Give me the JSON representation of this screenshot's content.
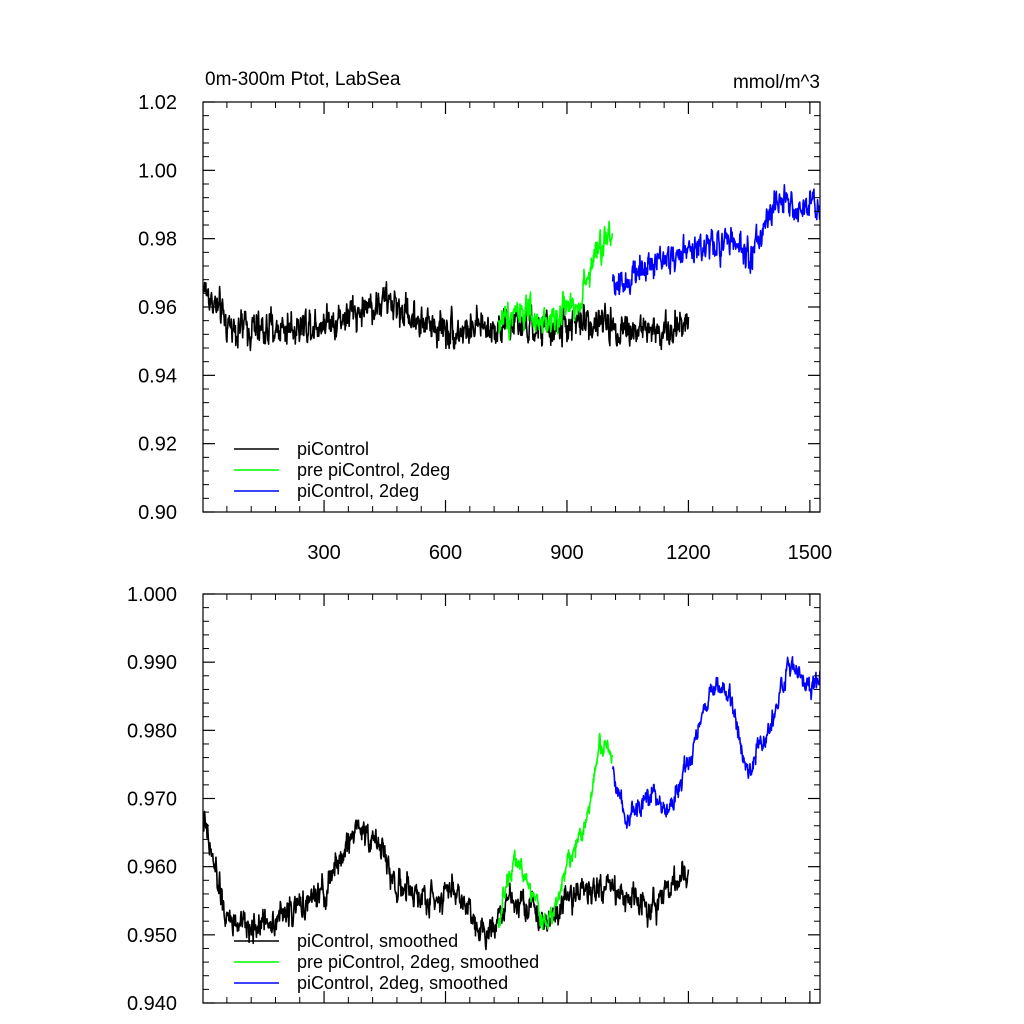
{
  "chart_data": [
    {
      "type": "line",
      "title": "0m-300m Ptot, LabSea",
      "units": "mmol/m^3",
      "xlim": [
        1,
        1525
      ],
      "ylim": [
        0.9,
        1.02
      ],
      "xticks": [
        300,
        600,
        900,
        1200,
        1500
      ],
      "xtick_labels": [
        "300",
        "600",
        "900",
        "1200",
        "1500"
      ],
      "yticks": [
        0.9,
        0.92,
        0.94,
        0.96,
        0.98,
        1.0,
        1.02
      ],
      "ytick_labels": [
        "0.90",
        "0.92",
        "0.94",
        "0.96",
        "0.98",
        "1.00",
        "1.02"
      ],
      "legend_position": "bottom-left",
      "series": [
        {
          "name": "piControl",
          "color": "#000000",
          "x_range": [
            1,
            1200
          ],
          "anchors": [
            [
              1,
              0.966
            ],
            [
              60,
              0.955
            ],
            [
              150,
              0.953
            ],
            [
              250,
              0.955
            ],
            [
              350,
              0.957
            ],
            [
              450,
              0.962
            ],
            [
              550,
              0.955
            ],
            [
              650,
              0.953
            ],
            [
              750,
              0.955
            ],
            [
              850,
              0.953
            ],
            [
              950,
              0.956
            ],
            [
              1050,
              0.954
            ],
            [
              1150,
              0.952
            ],
            [
              1200,
              0.957
            ]
          ],
          "noise": 0.01,
          "points": 1200
        },
        {
          "name": "pre piControl, 2deg",
          "color": "#00ff00",
          "x_range": [
            731,
            1012
          ],
          "anchors": [
            [
              731,
              0.955
            ],
            [
              780,
              0.96
            ],
            [
              830,
              0.954
            ],
            [
              880,
              0.958
            ],
            [
              930,
              0.962
            ],
            [
              970,
              0.975
            ],
            [
              1012,
              0.982
            ]
          ],
          "noise": 0.009,
          "points": 282
        },
        {
          "name": "piControl, 2deg",
          "color": "#0000ff",
          "x_range": [
            1013,
            1525
          ],
          "anchors": [
            [
              1013,
              0.966
            ],
            [
              1100,
              0.972
            ],
            [
              1200,
              0.976
            ],
            [
              1300,
              0.98
            ],
            [
              1350,
              0.975
            ],
            [
              1420,
              0.99
            ],
            [
              1480,
              0.988
            ],
            [
              1525,
              0.99
            ]
          ],
          "noise": 0.009,
          "points": 513
        }
      ]
    },
    {
      "type": "line",
      "title": "",
      "xlim": [
        1,
        1525
      ],
      "ylim": [
        0.94,
        1.0
      ],
      "yticks": [
        0.94,
        0.95,
        0.96,
        0.97,
        0.98,
        0.99,
        1.0
      ],
      "ytick_labels": [
        "0.940",
        "0.950",
        "0.960",
        "0.970",
        "0.980",
        "0.990",
        "1.000"
      ],
      "legend_position": "bottom-left",
      "series": [
        {
          "name": "piControl, smoothed",
          "color": "#000000",
          "x_range": [
            1,
            1200
          ],
          "anchors": [
            [
              1,
              0.967
            ],
            [
              60,
              0.952
            ],
            [
              120,
              0.951
            ],
            [
              200,
              0.953
            ],
            [
              300,
              0.956
            ],
            [
              380,
              0.966
            ],
            [
              430,
              0.964
            ],
            [
              480,
              0.957
            ],
            [
              560,
              0.955
            ],
            [
              620,
              0.957
            ],
            [
              700,
              0.95
            ],
            [
              760,
              0.956
            ],
            [
              850,
              0.952
            ],
            [
              900,
              0.956
            ],
            [
              1000,
              0.957
            ],
            [
              1100,
              0.954
            ],
            [
              1150,
              0.957
            ],
            [
              1200,
              0.958
            ]
          ],
          "noise": 0.004,
          "points": 1200
        },
        {
          "name": "pre piControl, 2deg, smoothed",
          "color": "#00ff00",
          "x_range": [
            731,
            1012
          ],
          "anchors": [
            [
              731,
              0.952
            ],
            [
              770,
              0.962
            ],
            [
              800,
              0.958
            ],
            [
              850,
              0.951
            ],
            [
              900,
              0.96
            ],
            [
              950,
              0.967
            ],
            [
              980,
              0.978
            ],
            [
              1012,
              0.977
            ]
          ],
          "noise": 0.003,
          "points": 282
        },
        {
          "name": "piControl, 2deg, smoothed",
          "color": "#0000ff",
          "x_range": [
            1013,
            1525
          ],
          "anchors": [
            [
              1013,
              0.974
            ],
            [
              1050,
              0.967
            ],
            [
              1100,
              0.971
            ],
            [
              1150,
              0.968
            ],
            [
              1200,
              0.975
            ],
            [
              1260,
              0.987
            ],
            [
              1300,
              0.985
            ],
            [
              1350,
              0.974
            ],
            [
              1400,
              0.98
            ],
            [
              1450,
              0.99
            ],
            [
              1500,
              0.986
            ],
            [
              1525,
              0.988
            ]
          ],
          "noise": 0.003,
          "points": 513
        }
      ]
    }
  ]
}
